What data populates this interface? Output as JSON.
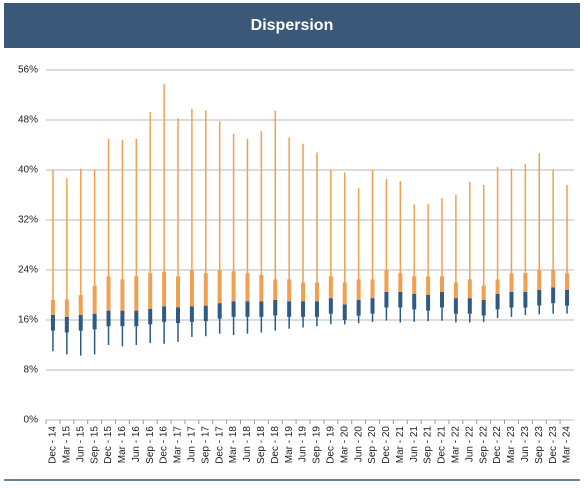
{
  "chart_data": {
    "type": "dispersion",
    "title": "Dispersion",
    "categories": [
      "Dec - 14",
      "Mar - 15",
      "Jun - 15",
      "Sep - 15",
      "Dec - 15",
      "Mar - 16",
      "Jun - 16",
      "Sep - 16",
      "Dec - 16",
      "Mar - 17",
      "Jun - 17",
      "Sep - 17",
      "Dec - 17",
      "Mar - 18",
      "Jun - 18",
      "Sep - 18",
      "Dec - 18",
      "Mar - 19",
      "Jun - 19",
      "Sep - 19",
      "Dec - 19",
      "Mar - 20",
      "Jun - 20",
      "Sep - 20",
      "Dec - 20",
      "Mar - 21",
      "Jun - 21",
      "Sep - 21",
      "Dec - 21",
      "Mar - 22",
      "Jun - 22",
      "Sep - 22",
      "Dec - 22",
      "Mar - 23",
      "Jun - 23",
      "Sep - 23",
      "Dec - 23",
      "Mar - 24"
    ],
    "series": [
      {
        "color": "#2e5a84",
        "values": [
          11,
          10.5,
          10.3,
          10.5,
          12,
          11.8,
          12,
          12.3,
          12.2,
          12.5,
          13.3,
          13.4,
          13.8,
          13.6,
          13.8,
          14,
          14.3,
          14.6,
          14.8,
          15,
          15.3,
          15.3,
          15.5,
          15.7,
          15.9,
          15.6,
          15.7,
          15.8,
          15.9,
          15.6,
          15.6,
          15.7,
          16.3,
          16.5,
          16.8,
          16.9,
          17,
          17
        ]
      },
      {
        "color": "#2e5a84",
        "values": [
          14.3,
          14,
          14.3,
          14.5,
          15,
          15,
          15,
          15.3,
          15.7,
          15.5,
          15.7,
          15.8,
          16.2,
          16.5,
          16.5,
          16.5,
          16.7,
          16.5,
          16.5,
          16.5,
          17,
          16,
          16.7,
          17,
          18,
          18,
          17.7,
          17.5,
          18,
          17,
          17,
          16.7,
          17.7,
          18,
          18,
          18.3,
          18.7,
          18.3
        ]
      },
      {
        "color": "#2e5a84",
        "values": [
          16.8,
          16.5,
          16.8,
          17,
          17.5,
          17.5,
          17.5,
          17.8,
          18.2,
          18,
          18.2,
          18.3,
          18.7,
          19,
          19,
          19,
          19.2,
          19,
          19,
          19,
          19.5,
          18.5,
          19.2,
          19.5,
          20.5,
          20.5,
          20.2,
          20,
          20.5,
          19.5,
          19.5,
          19.2,
          20.2,
          20.5,
          20.5,
          20.8,
          21.2,
          20.8
        ]
      },
      {
        "color": "#f0a050",
        "values": [
          19.2,
          19.3,
          20,
          21.5,
          23,
          22.5,
          23,
          23.5,
          23.7,
          23,
          24,
          23.5,
          24,
          23.8,
          23.5,
          23.2,
          22.5,
          22.5,
          22,
          22,
          23,
          22,
          22.5,
          22.5,
          24,
          23.5,
          23,
          23,
          23,
          22,
          22.5,
          21.5,
          22.5,
          23.5,
          23.5,
          24,
          24,
          23.5
        ]
      },
      {
        "color": "#f0a050",
        "values": [
          40,
          38.7,
          40.2,
          40,
          45,
          44.8,
          45,
          49.3,
          53.8,
          48.3,
          49.8,
          49.5,
          47.8,
          45.8,
          45,
          46.2,
          49.5,
          45.2,
          44.2,
          42.8,
          40,
          39.6,
          37.1,
          40,
          38.6,
          38.2,
          34.5,
          34.6,
          35.5,
          36,
          38.1,
          37.6,
          40.5,
          40.2,
          41,
          42.7,
          40,
          37.6
        ]
      }
    ],
    "ylim": [
      0,
      56
    ],
    "yticks": [
      {
        "value": 0,
        "label": "0%"
      },
      {
        "value": 8,
        "label": "8%"
      },
      {
        "value": 16,
        "label": "16%"
      },
      {
        "value": 24,
        "label": "24%"
      },
      {
        "value": 32,
        "label": "32%"
      },
      {
        "value": 40,
        "label": "40%"
      },
      {
        "value": 48,
        "label": "48%"
      },
      {
        "value": 56,
        "label": "56%"
      }
    ],
    "grid": true
  }
}
